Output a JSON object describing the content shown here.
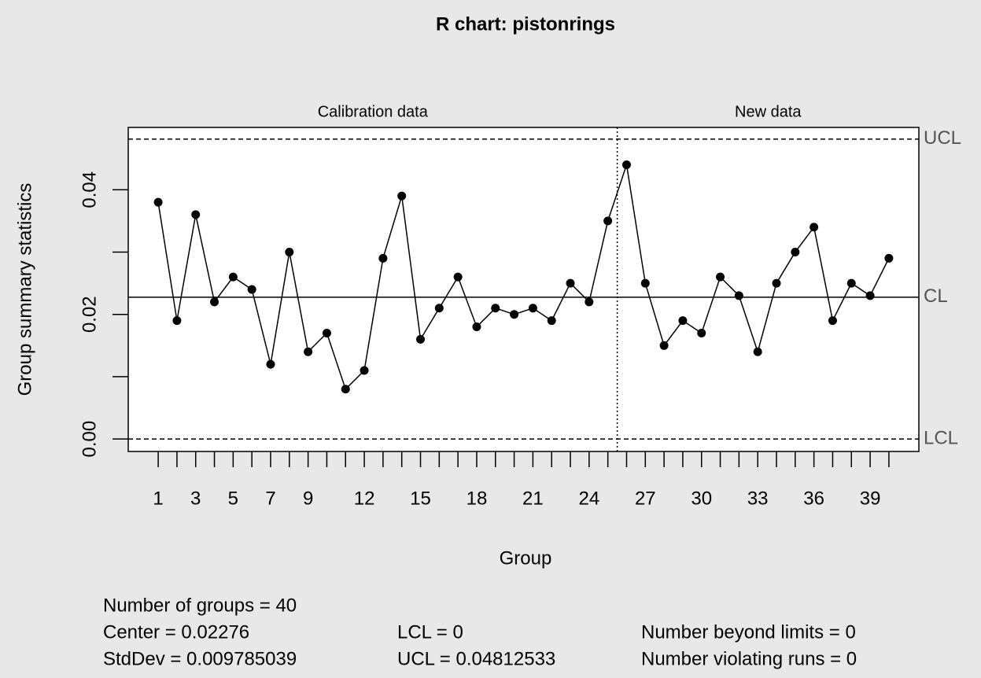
{
  "chart_data": {
    "type": "line",
    "title": "R chart: pistonrings",
    "x_label": "Group",
    "y_label": "Group summary statistics",
    "x": [
      1,
      2,
      3,
      4,
      5,
      6,
      7,
      8,
      9,
      10,
      11,
      12,
      13,
      14,
      15,
      16,
      17,
      18,
      19,
      20,
      21,
      22,
      23,
      24,
      25,
      26,
      27,
      28,
      29,
      30,
      31,
      32,
      33,
      34,
      35,
      36,
      37,
      38,
      39,
      40
    ],
    "series": [
      {
        "color": "#000000",
        "values": [
          0.038,
          0.019,
          0.036,
          0.022,
          0.026,
          0.024,
          0.012,
          0.03,
          0.014,
          0.017,
          0.008,
          0.011,
          0.029,
          0.039,
          0.016,
          0.021,
          0.026,
          0.018,
          0.021,
          0.02,
          0.021,
          0.019,
          0.025,
          0.022,
          0.035,
          0.044,
          0.025,
          0.015,
          0.019,
          0.017,
          0.026,
          0.023,
          0.014,
          0.025,
          0.03,
          0.034,
          0.019,
          0.025,
          0.023,
          0.029
        ]
      }
    ],
    "xlim": [
      -0.6,
      41.6
    ],
    "xticks": [
      1,
      3,
      5,
      7,
      9,
      12,
      15,
      18,
      21,
      24,
      27,
      30,
      33,
      36,
      39
    ],
    "ylim": [
      -0.002,
      0.05
    ],
    "yticks": [
      {
        "value": 0,
        "label": "0.00"
      },
      {
        "value": 0.02,
        "label": "0.02"
      },
      {
        "value": 0.04,
        "label": "0.04"
      }
    ],
    "yminor_ticks": [
      0.01,
      0.03
    ],
    "limits": [
      {
        "name": "UCL",
        "value": 0.04812533,
        "style": "dashed"
      },
      {
        "name": "CL",
        "value": 0.02276,
        "style": "solid"
      },
      {
        "name": "LCL",
        "value": 0,
        "style": "dashed"
      }
    ],
    "divider_x": 25.5,
    "sections": [
      "Calibration data",
      "New data"
    ],
    "stats": [
      [
        "Number of groups = 40"
      ],
      [
        "Center = 0.02276",
        "LCL = 0",
        "Number beyond limits = 0"
      ],
      [
        "StdDev = 0.009785039",
        "UCL = 0.04812533",
        "Number violating runs = 0"
      ]
    ]
  }
}
